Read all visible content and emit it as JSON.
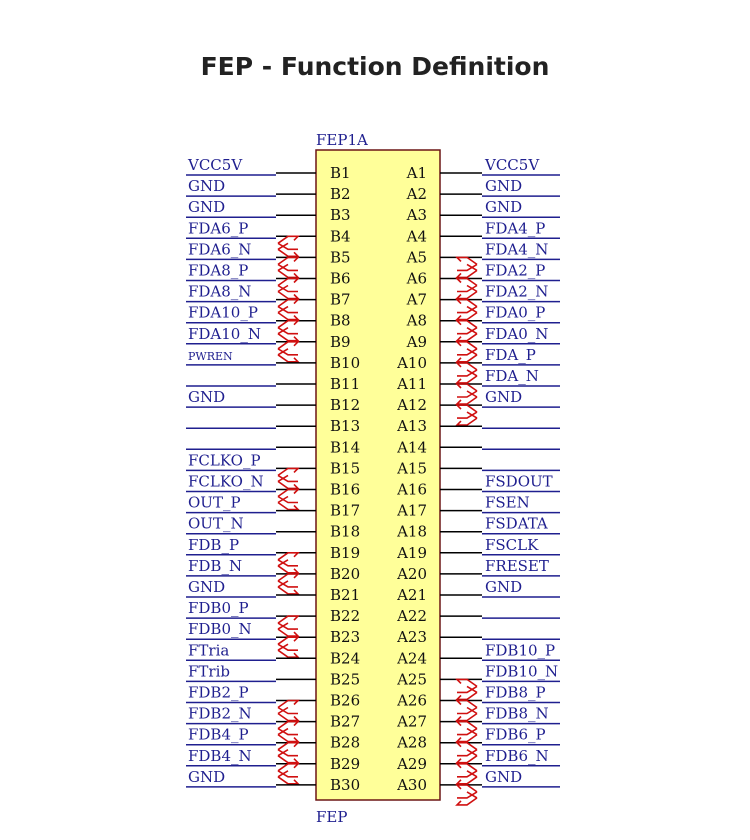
{
  "title": "FEP - Function Definition",
  "component": {
    "ref": "FEP1A",
    "name": "FEP"
  },
  "colors": {
    "box_fill": "#ffff99",
    "box_stroke": "#6b1515",
    "net_line": "#1f1f8f",
    "pin_line": "#000000",
    "diff_symbol": "#d01010",
    "label": "#1f1f8f"
  },
  "pins": [
    {
      "b": "B1",
      "a": "A1",
      "left": "VCC5V",
      "left_diff": false,
      "right": "VCC5V",
      "right_diff": false
    },
    {
      "b": "B2",
      "a": "A2",
      "left": "GND",
      "left_diff": false,
      "right": "GND",
      "right_diff": false
    },
    {
      "b": "B3",
      "a": "A3",
      "left": "GND",
      "left_diff": false,
      "right": "GND",
      "right_diff": false
    },
    {
      "b": "B4",
      "a": "A4",
      "left": "FDA6_P",
      "left_diff": true,
      "right": "FDA4_P",
      "right_diff": false
    },
    {
      "b": "B5",
      "a": "A5",
      "left": "FDA6_N",
      "left_diff": true,
      "right": "FDA4_N",
      "right_diff": true
    },
    {
      "b": "B6",
      "a": "A6",
      "left": "FDA8_P",
      "left_diff": true,
      "right": "FDA2_P",
      "right_diff": true
    },
    {
      "b": "B7",
      "a": "A7",
      "left": "FDA8_N",
      "left_diff": true,
      "right": "FDA2_N",
      "right_diff": true
    },
    {
      "b": "B8",
      "a": "A8",
      "left": "FDA10_P",
      "left_diff": true,
      "right": "FDA0_P",
      "right_diff": true
    },
    {
      "b": "B9",
      "a": "A9",
      "left": "FDA10_N",
      "left_diff": true,
      "right": "FDA0_N",
      "right_diff": true
    },
    {
      "b": "B10",
      "a": "A10",
      "left": "PWREN",
      "left_diff": false,
      "left_small": true,
      "right": "FDA_P",
      "right_diff": true
    },
    {
      "b": "B11",
      "a": "A11",
      "left": "",
      "left_diff": false,
      "right": "FDA_N",
      "right_diff": true
    },
    {
      "b": "B12",
      "a": "A12",
      "left": "GND",
      "left_diff": false,
      "right": "GND",
      "right_diff": true
    },
    {
      "b": "B13",
      "a": "A13",
      "left": "",
      "left_diff": false,
      "right": "",
      "right_diff": false
    },
    {
      "b": "B14",
      "a": "A14",
      "left": "",
      "left_diff": false,
      "right": "",
      "right_diff": false
    },
    {
      "b": "B15",
      "a": "A15",
      "left": "FCLKO_P",
      "left_diff": true,
      "right": "",
      "right_diff": false
    },
    {
      "b": "B16",
      "a": "A16",
      "left": "FCLKO_N",
      "left_diff": true,
      "right": "FSDOUT",
      "right_diff": false
    },
    {
      "b": "B17",
      "a": "A17",
      "left": "OUT_P",
      "left_diff": false,
      "right": "FSEN",
      "right_diff": false
    },
    {
      "b": "B18",
      "a": "A18",
      "left": "OUT_N",
      "left_diff": false,
      "right": "FSDATA",
      "right_diff": false
    },
    {
      "b": "B19",
      "a": "A19",
      "left": "FDB_P",
      "left_diff": true,
      "right": "FSCLK",
      "right_diff": false
    },
    {
      "b": "B20",
      "a": "A20",
      "left": "FDB_N",
      "left_diff": true,
      "right": "FRESET",
      "right_diff": false
    },
    {
      "b": "B21",
      "a": "A21",
      "left": "GND",
      "left_diff": false,
      "right": "GND",
      "right_diff": false
    },
    {
      "b": "B22",
      "a": "A22",
      "left": "FDB0_P",
      "left_diff": true,
      "right": "",
      "right_diff": false
    },
    {
      "b": "B23",
      "a": "A23",
      "left": "FDB0_N",
      "left_diff": true,
      "right": "",
      "right_diff": false
    },
    {
      "b": "B24",
      "a": "A24",
      "left": "FTria",
      "left_diff": false,
      "right": "FDB10_P",
      "right_diff": false
    },
    {
      "b": "B25",
      "a": "A25",
      "left": "FTrib",
      "left_diff": false,
      "right": "FDB10_N",
      "right_diff": true
    },
    {
      "b": "B26",
      "a": "A26",
      "left": "FDB2_P",
      "left_diff": true,
      "right": "FDB8_P",
      "right_diff": true
    },
    {
      "b": "B27",
      "a": "A27",
      "left": "FDB2_N",
      "left_diff": true,
      "right": "FDB8_N",
      "right_diff": true
    },
    {
      "b": "B28",
      "a": "A28",
      "left": "FDB4_P",
      "left_diff": true,
      "right": "FDB6_P",
      "right_diff": true
    },
    {
      "b": "B29",
      "a": "A29",
      "left": "FDB4_N",
      "left_diff": true,
      "right": "FDB6_N",
      "right_diff": true
    },
    {
      "b": "B30",
      "a": "A30",
      "left": "GND",
      "left_diff": false,
      "right": "GND",
      "right_diff": true
    }
  ]
}
